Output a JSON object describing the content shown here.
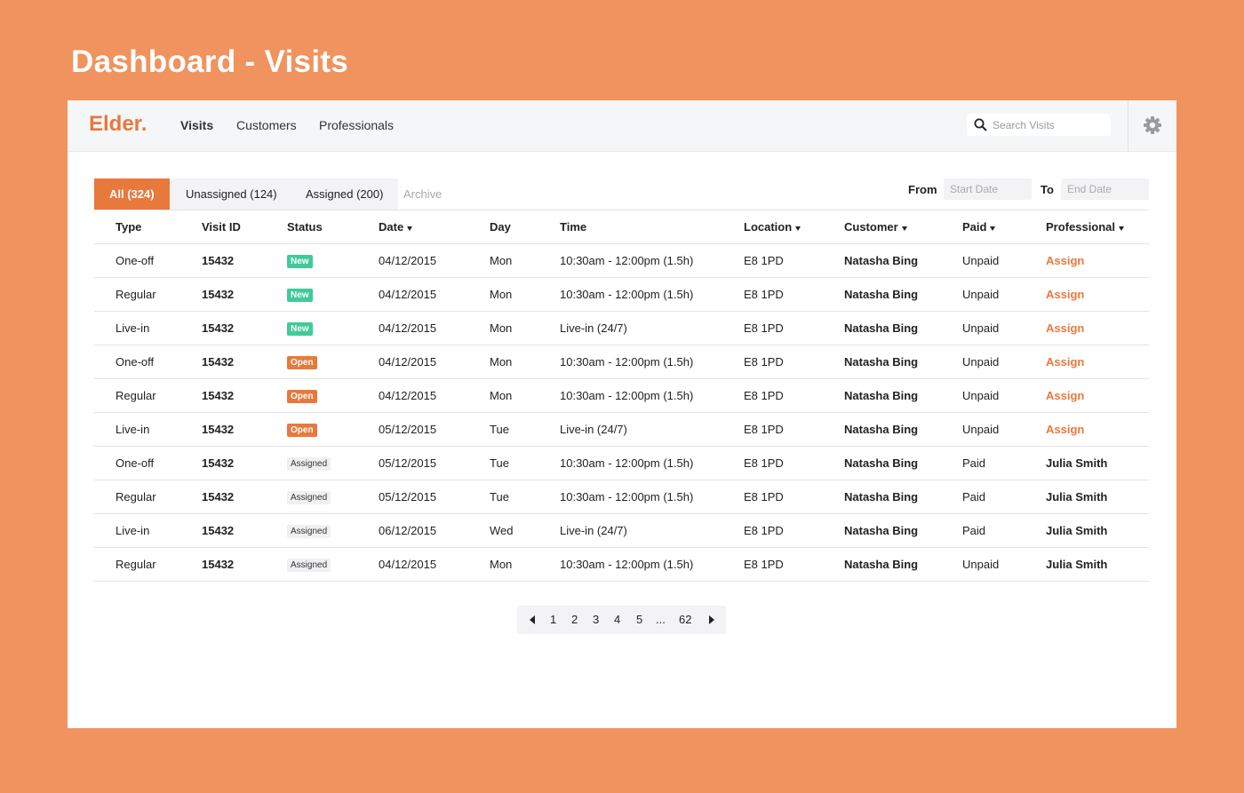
{
  "header": {
    "title": "Dashboard - Visits"
  },
  "nav": {
    "logo": "Elder.",
    "links": [
      "Visits",
      "Customers",
      "Professionals"
    ],
    "search_placeholder": "Search Visits"
  },
  "tabs": [
    "All (324)",
    "Unassigned (124)",
    "Assigned (200)",
    "Archive"
  ],
  "filters": {
    "from_label": "From",
    "from_placeholder": "Start Date",
    "to_label": "To",
    "to_placeholder": "End Date"
  },
  "table": {
    "columns": [
      "Type",
      "Visit ID",
      "Status",
      "Date",
      "Day",
      "Time",
      "Location",
      "Customer",
      "Paid",
      "Professional"
    ],
    "sortable": [
      false,
      false,
      false,
      true,
      false,
      false,
      true,
      true,
      true,
      true
    ],
    "rows": [
      {
        "cells": [
          "One-off",
          "15432",
          "New",
          "04/12/2015",
          "Mon",
          "10:30am - 12:00pm (1.5h)",
          "E8 1PD",
          "Natasha Bing",
          "Unpaid",
          "Assign"
        ],
        "status_bg": "#3fcb98",
        "status_fg": "#ffffff",
        "professional_color": "#e8793d"
      },
      {
        "cells": [
          "Regular",
          "15432",
          "New",
          "04/12/2015",
          "Mon",
          "10:30am - 12:00pm (1.5h)",
          "E8 1PD",
          "Natasha Bing",
          "Unpaid",
          "Assign"
        ],
        "status_bg": "#3fcb98",
        "status_fg": "#ffffff",
        "professional_color": "#e8793d"
      },
      {
        "cells": [
          "Live-in",
          "15432",
          "New",
          "04/12/2015",
          "Mon",
          "Live-in (24/7)",
          "E8 1PD",
          "Natasha Bing",
          "Unpaid",
          "Assign"
        ],
        "status_bg": "#3fcb98",
        "status_fg": "#ffffff",
        "professional_color": "#e8793d"
      },
      {
        "cells": [
          "One-off",
          "15432",
          "Open",
          "04/12/2015",
          "Mon",
          "10:30am - 12:00pm (1.5h)",
          "E8 1PD",
          "Natasha Bing",
          "Unpaid",
          "Assign"
        ],
        "status_bg": "#e8793d",
        "status_fg": "#ffffff",
        "professional_color": "#e8793d"
      },
      {
        "cells": [
          "Regular",
          "15432",
          "Open",
          "04/12/2015",
          "Mon",
          "10:30am - 12:00pm (1.5h)",
          "E8 1PD",
          "Natasha Bing",
          "Unpaid",
          "Assign"
        ],
        "status_bg": "#e8793d",
        "status_fg": "#ffffff",
        "professional_color": "#e8793d"
      },
      {
        "cells": [
          "Live-in",
          "15432",
          "Open",
          "05/12/2015",
          "Tue",
          "Live-in (24/7)",
          "E8 1PD",
          "Natasha Bing",
          "Unpaid",
          "Assign"
        ],
        "status_bg": "#e8793d",
        "status_fg": "#ffffff",
        "professional_color": "#e8793d"
      },
      {
        "cells": [
          "One-off",
          "15432",
          "Assigned",
          "05/12/2015",
          "Tue",
          "10:30am - 12:00pm (1.5h)",
          "E8 1PD",
          "Natasha Bing",
          "Paid",
          "Julia Smith"
        ],
        "status_bg": "#f0f0f2",
        "status_fg": "#333333",
        "professional_color": "#222222"
      },
      {
        "cells": [
          "Regular",
          "15432",
          "Assigned",
          "05/12/2015",
          "Tue",
          "10:30am - 12:00pm (1.5h)",
          "E8 1PD",
          "Natasha Bing",
          "Paid",
          "Julia Smith"
        ],
        "status_bg": "#f0f0f2",
        "status_fg": "#333333",
        "professional_color": "#222222"
      },
      {
        "cells": [
          "Live-in",
          "15432",
          "Assigned",
          "06/12/2015",
          "Wed",
          "Live-in (24/7)",
          "E8 1PD",
          "Natasha Bing",
          "Paid",
          "Julia Smith"
        ],
        "status_bg": "#f0f0f2",
        "status_fg": "#333333",
        "professional_color": "#222222"
      },
      {
        "cells": [
          "Regular",
          "15432",
          "Assigned",
          "04/12/2015",
          "Mon",
          "10:30am - 12:00pm (1.5h)",
          "E8 1PD",
          "Natasha Bing",
          "Unpaid",
          "Julia Smith"
        ],
        "status_bg": "#f0f0f2",
        "status_fg": "#333333",
        "professional_color": "#222222"
      }
    ]
  },
  "pagination": {
    "pages": [
      "1",
      "2",
      "3",
      "4",
      "5",
      "...",
      "62"
    ]
  }
}
